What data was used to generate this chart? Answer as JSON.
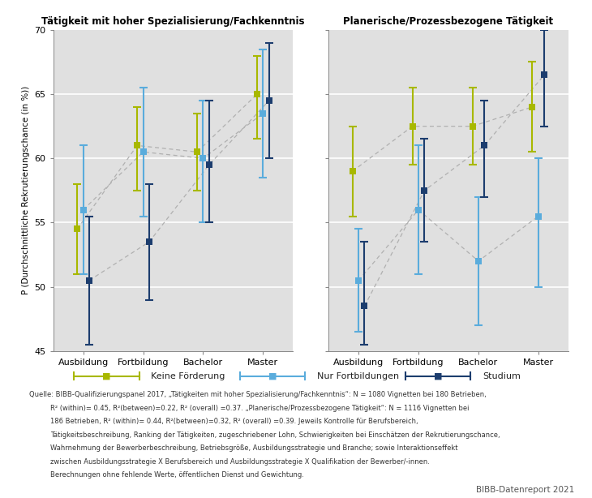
{
  "title_left": "Tätigkeit mit hoher Spezialisierung/Fachkenntnis",
  "title_right": "Planerische/Prozessbezogene Tätigkeit",
  "ylabel": "P (Durchschnittliche Rekrutierungschance (in %))",
  "xticklabels": [
    "Ausbildung",
    "Fortbildung",
    "Bachelor",
    "Master"
  ],
  "ylim": [
    45,
    70
  ],
  "yticks": [
    45,
    50,
    55,
    60,
    65,
    70
  ],
  "colors": {
    "keine": "#a8b800",
    "fortbildung": "#5aacdc",
    "studium": "#1c3d6e"
  },
  "left": {
    "keine_foerderung": {
      "means": [
        54.5,
        61.0,
        60.5,
        65.0
      ],
      "ci_lo": [
        51.0,
        57.5,
        57.5,
        61.5
      ],
      "ci_hi": [
        58.0,
        64.0,
        63.5,
        68.0
      ]
    },
    "nur_fortbildungen": {
      "means": [
        56.0,
        60.5,
        60.0,
        63.5
      ],
      "ci_lo": [
        51.0,
        55.5,
        55.0,
        58.5
      ],
      "ci_hi": [
        61.0,
        65.5,
        64.5,
        68.5
      ]
    },
    "studium": {
      "means": [
        50.5,
        53.5,
        59.5,
        64.5
      ],
      "ci_lo": [
        45.5,
        49.0,
        55.0,
        60.0
      ],
      "ci_hi": [
        55.5,
        58.0,
        64.5,
        69.0
      ]
    }
  },
  "right": {
    "keine_foerderung": {
      "means": [
        59.0,
        62.5,
        62.5,
        64.0
      ],
      "ci_lo": [
        55.5,
        59.5,
        59.5,
        60.5
      ],
      "ci_hi": [
        62.5,
        65.5,
        65.5,
        67.5
      ]
    },
    "nur_fortbildungen": {
      "means": [
        50.5,
        56.0,
        52.0,
        55.5
      ],
      "ci_lo": [
        46.5,
        51.0,
        47.0,
        50.0
      ],
      "ci_hi": [
        54.5,
        61.0,
        57.0,
        60.0
      ]
    },
    "studium": {
      "means": [
        48.5,
        57.5,
        61.0,
        66.5
      ],
      "ci_lo": [
        45.5,
        53.5,
        57.0,
        62.5
      ],
      "ci_hi": [
        53.5,
        61.5,
        64.5,
        70.0
      ]
    }
  },
  "legend_labels": [
    "Keine Förderung",
    "Nur Fortbildungen",
    "Studium"
  ],
  "footnote_line1": "Quelle: BIBB-Qualifizierungspanel 2017, „Tätigkeiten mit hoher Spezialisierung/Fachkenntnis“: N = 1080 Vignetten bei 180 Betrieben,",
  "footnote_line2": "R² (within)= 0.45, R²(between)=0.22, R² (overall) =0.37. „Planerische/Prozessbezogene Tätigkeit“: N = 1116 Vignetten bei",
  "footnote_line3": "186 Betrieben, R² (within)= 0.44, R²(between)=0.32, R² (overall) =0.39. Jeweils Kontrolle für Berufsbereich,",
  "footnote_line4": "Tätigkeitsbeschreibung, Ranking der Tätigkeiten, zugeschriebener Lohn, Schwierigkeiten bei Einschätzen der Rekrutierungschance,",
  "footnote_line5": "Wahrnehmung der Bewerberbeschreibung, Betriebsgröße, Ausbildungsstrategie und Branche; sowie Interaktionseffekt",
  "footnote_line6": "zwischen Ausbildungsstrategie X Berufsbereich und Ausbildungsstrategie X Qualifikation der Bewerber/-innen.",
  "footnote_line7": "Berechnungen ohne fehlende Werte, öffentlichen Dienst und Gewichtung.",
  "branding": "BIBB-Datenreport 2021",
  "plot_bg": "#e0e0e0",
  "outer_bg": "#ffffff"
}
